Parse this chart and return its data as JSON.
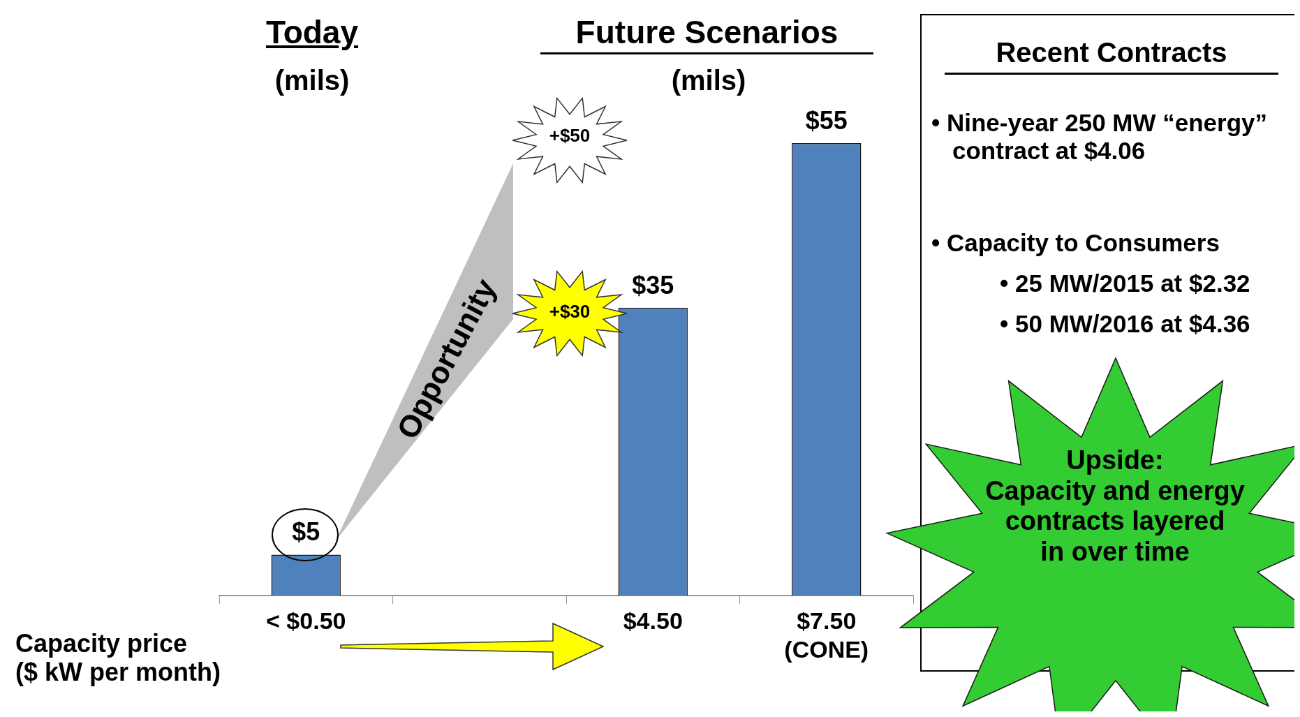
{
  "chart_data": {
    "type": "bar",
    "categories": [
      "< $0.50",
      null,
      "$4.50",
      "$7.50 (CONE)"
    ],
    "values": [
      5,
      null,
      35,
      55
    ],
    "value_labels": [
      "$5",
      null,
      "$35",
      "$55"
    ],
    "color": "#4f81bd",
    "xlabel": "Capacity price\n($ kW per month)",
    "grid": false,
    "legend": false,
    "annotations": [
      "Today",
      "(mils)",
      "Future Scenarios",
      "(mils)",
      "Opportunity",
      "+$50",
      "+$30",
      "Recent Contracts",
      "• Nine-year 250 MW “energy” contract at $4.06",
      "• Capacity to Consumers",
      "• 25 MW/2015 at $2.32",
      "• 50 MW/2016 at $4.36",
      "Upside:\nCapacity and energy\ncontracts layered\nin over time"
    ]
  }
}
